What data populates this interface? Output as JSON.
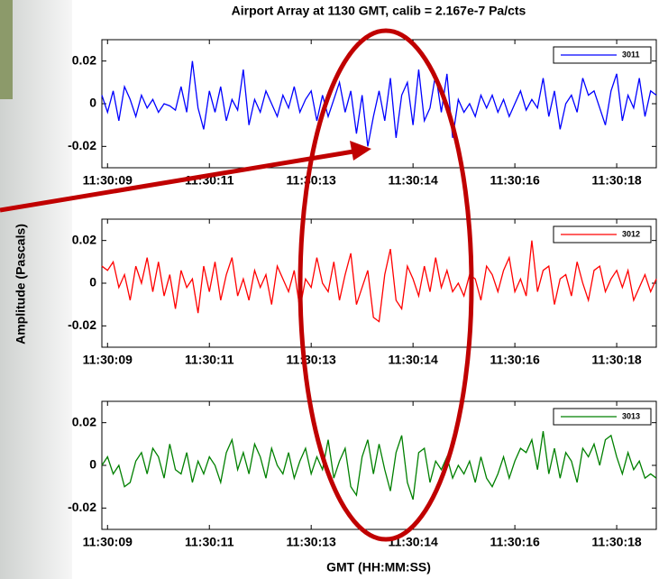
{
  "figure": {
    "title": "Airport Array at 1130 GMT, calib = 2.167e-7 Pa/cts",
    "ylabel": "Amplitude (Pascals)",
    "xlabel": "GMT (HH:MM:SS)"
  },
  "chart_data": [
    {
      "type": "line",
      "legend": "upper right",
      "grid": false,
      "xlim": [
        8.9,
        18.7
      ],
      "ylim": [
        -0.03,
        0.03
      ],
      "yticks": [
        -0.02,
        0,
        0.02
      ],
      "xticks": [
        {
          "value": 9.0,
          "label": "11:30:09"
        },
        {
          "value": 10.8,
          "label": "11:30:11"
        },
        {
          "value": 12.6,
          "label": "11:30:13"
        },
        {
          "value": 14.4,
          "label": "11:30:14"
        },
        {
          "value": 16.2,
          "label": "11:30:16"
        },
        {
          "value": 18.0,
          "label": "11:30:18"
        }
      ],
      "x": [
        8.9,
        9.0,
        9.1,
        9.2,
        9.3,
        9.4,
        9.5,
        9.6,
        9.7,
        9.8,
        9.9,
        10.0,
        10.1,
        10.2,
        10.3,
        10.4,
        10.5,
        10.6,
        10.7,
        10.8,
        10.9,
        11.0,
        11.1,
        11.2,
        11.3,
        11.4,
        11.5,
        11.6,
        11.7,
        11.8,
        11.9,
        12.0,
        12.1,
        12.2,
        12.3,
        12.4,
        12.5,
        12.6,
        12.7,
        12.8,
        12.9,
        13.0,
        13.1,
        13.2,
        13.3,
        13.4,
        13.5,
        13.6,
        13.7,
        13.8,
        13.9,
        14.0,
        14.1,
        14.2,
        14.3,
        14.4,
        14.5,
        14.6,
        14.7,
        14.8,
        14.9,
        15.0,
        15.1,
        15.2,
        15.3,
        15.4,
        15.5,
        15.6,
        15.7,
        15.8,
        15.9,
        16.0,
        16.1,
        16.2,
        16.3,
        16.4,
        16.5,
        16.6,
        16.7,
        16.8,
        16.9,
        17.0,
        17.1,
        17.2,
        17.3,
        17.4,
        17.5,
        17.6,
        17.7,
        17.8,
        17.9,
        18.0,
        18.1,
        18.2,
        18.3,
        18.4,
        18.5,
        18.6,
        18.7
      ],
      "series": [
        {
          "name": "3011",
          "color": "#0000ff",
          "values": [
            0.004,
            -0.004,
            0.006,
            -0.008,
            0.008,
            0.002,
            -0.006,
            0.004,
            -0.002,
            0.002,
            -0.004,
            0.0,
            -0.001,
            -0.003,
            0.008,
            -0.004,
            0.02,
            -0.002,
            -0.012,
            0.006,
            -0.004,
            0.008,
            -0.008,
            0.002,
            -0.003,
            0.016,
            -0.01,
            0.002,
            -0.004,
            0.006,
            0.0,
            -0.006,
            0.004,
            -0.002,
            0.008,
            -0.004,
            0.002,
            0.006,
            -0.008,
            0.004,
            -0.006,
            0.002,
            0.01,
            -0.004,
            0.006,
            -0.014,
            0.004,
            -0.02,
            -0.006,
            0.006,
            -0.008,
            0.012,
            -0.016,
            0.004,
            0.01,
            -0.01,
            0.016,
            -0.008,
            -0.002,
            0.014,
            -0.004,
            0.014,
            -0.016,
            0.002,
            -0.004,
            0.0,
            -0.006,
            0.004,
            -0.002,
            0.004,
            -0.004,
            0.002,
            -0.006,
            0.0,
            0.006,
            -0.003,
            0.002,
            -0.002,
            0.012,
            -0.006,
            0.006,
            -0.012,
            0.0,
            0.004,
            -0.004,
            0.012,
            0.004,
            0.006,
            -0.002,
            -0.01,
            0.006,
            0.014,
            -0.008,
            0.004,
            -0.002,
            0.012,
            -0.006,
            0.006,
            0.004
          ]
        }
      ]
    },
    {
      "type": "line",
      "legend": "upper right",
      "grid": false,
      "xlim": [
        8.9,
        18.7
      ],
      "ylim": [
        -0.03,
        0.03
      ],
      "yticks": [
        -0.02,
        0,
        0.02
      ],
      "xticks": [
        {
          "value": 9.0,
          "label": "11:30:09"
        },
        {
          "value": 10.8,
          "label": "11:30:11"
        },
        {
          "value": 12.6,
          "label": "11:30:13"
        },
        {
          "value": 14.4,
          "label": "11:30:14"
        },
        {
          "value": 16.2,
          "label": "11:30:16"
        },
        {
          "value": 18.0,
          "label": "11:30:18"
        }
      ],
      "x": [
        8.9,
        9.0,
        9.1,
        9.2,
        9.3,
        9.4,
        9.5,
        9.6,
        9.7,
        9.8,
        9.9,
        10.0,
        10.1,
        10.2,
        10.3,
        10.4,
        10.5,
        10.6,
        10.7,
        10.8,
        10.9,
        11.0,
        11.1,
        11.2,
        11.3,
        11.4,
        11.5,
        11.6,
        11.7,
        11.8,
        11.9,
        12.0,
        12.1,
        12.2,
        12.3,
        12.4,
        12.5,
        12.6,
        12.7,
        12.8,
        12.9,
        13.0,
        13.1,
        13.2,
        13.3,
        13.4,
        13.5,
        13.6,
        13.7,
        13.8,
        13.9,
        14.0,
        14.1,
        14.2,
        14.3,
        14.4,
        14.5,
        14.6,
        14.7,
        14.8,
        14.9,
        15.0,
        15.1,
        15.2,
        15.3,
        15.4,
        15.5,
        15.6,
        15.7,
        15.8,
        15.9,
        16.0,
        16.1,
        16.2,
        16.3,
        16.4,
        16.5,
        16.6,
        16.7,
        16.8,
        16.9,
        17.0,
        17.1,
        17.2,
        17.3,
        17.4,
        17.5,
        17.6,
        17.7,
        17.8,
        17.9,
        18.0,
        18.1,
        18.2,
        18.3,
        18.4,
        18.5,
        18.6,
        18.7
      ],
      "series": [
        {
          "name": "3012",
          "color": "#ff0000",
          "values": [
            0.008,
            0.006,
            0.01,
            -0.002,
            0.004,
            -0.008,
            0.008,
            0.0,
            0.012,
            -0.004,
            0.01,
            -0.006,
            0.004,
            -0.012,
            0.006,
            -0.002,
            0.002,
            -0.014,
            0.008,
            -0.004,
            0.01,
            -0.008,
            0.004,
            0.012,
            -0.006,
            0.002,
            -0.008,
            0.006,
            -0.002,
            0.004,
            -0.01,
            0.008,
            0.002,
            -0.004,
            0.006,
            -0.012,
            0.002,
            -0.002,
            0.012,
            0.0,
            -0.004,
            0.01,
            -0.008,
            0.004,
            0.014,
            -0.01,
            -0.002,
            0.006,
            -0.016,
            -0.018,
            0.004,
            0.016,
            -0.008,
            -0.012,
            0.008,
            0.002,
            -0.006,
            0.008,
            -0.004,
            0.012,
            -0.002,
            0.006,
            -0.004,
            0.0,
            -0.006,
            0.004,
            0.002,
            -0.008,
            0.008,
            0.004,
            -0.004,
            0.006,
            0.012,
            -0.004,
            0.002,
            -0.006,
            0.02,
            -0.004,
            0.006,
            0.008,
            -0.01,
            0.002,
            0.004,
            -0.006,
            0.01,
            0.0,
            -0.008,
            0.006,
            0.008,
            -0.004,
            0.002,
            0.006,
            -0.002,
            0.006,
            -0.008,
            -0.002,
            0.004,
            -0.004,
            0.002
          ]
        }
      ]
    },
    {
      "type": "line",
      "legend": "upper right",
      "grid": false,
      "xlim": [
        8.9,
        18.7
      ],
      "ylim": [
        -0.03,
        0.03
      ],
      "yticks": [
        -0.02,
        0,
        0.02
      ],
      "xticks": [
        {
          "value": 9.0,
          "label": "11:30:09"
        },
        {
          "value": 10.8,
          "label": "11:30:11"
        },
        {
          "value": 12.6,
          "label": "11:30:13"
        },
        {
          "value": 14.4,
          "label": "11:30:14"
        },
        {
          "value": 16.2,
          "label": "11:30:16"
        },
        {
          "value": 18.0,
          "label": "11:30:18"
        }
      ],
      "x": [
        8.9,
        9.0,
        9.1,
        9.2,
        9.3,
        9.4,
        9.5,
        9.6,
        9.7,
        9.8,
        9.9,
        10.0,
        10.1,
        10.2,
        10.3,
        10.4,
        10.5,
        10.6,
        10.7,
        10.8,
        10.9,
        11.0,
        11.1,
        11.2,
        11.3,
        11.4,
        11.5,
        11.6,
        11.7,
        11.8,
        11.9,
        12.0,
        12.1,
        12.2,
        12.3,
        12.4,
        12.5,
        12.6,
        12.7,
        12.8,
        12.9,
        13.0,
        13.1,
        13.2,
        13.3,
        13.4,
        13.5,
        13.6,
        13.7,
        13.8,
        13.9,
        14.0,
        14.1,
        14.2,
        14.3,
        14.4,
        14.5,
        14.6,
        14.7,
        14.8,
        14.9,
        15.0,
        15.1,
        15.2,
        15.3,
        15.4,
        15.5,
        15.6,
        15.7,
        15.8,
        15.9,
        16.0,
        16.1,
        16.2,
        16.3,
        16.4,
        16.5,
        16.6,
        16.7,
        16.8,
        16.9,
        17.0,
        17.1,
        17.2,
        17.3,
        17.4,
        17.5,
        17.6,
        17.7,
        17.8,
        17.9,
        18.0,
        18.1,
        18.2,
        18.3,
        18.4,
        18.5,
        18.6,
        18.7
      ],
      "series": [
        {
          "name": "3013",
          "color": "#008000",
          "values": [
            0.0,
            0.004,
            -0.004,
            0.0,
            -0.01,
            -0.008,
            0.002,
            0.006,
            -0.004,
            0.008,
            0.004,
            -0.006,
            0.01,
            -0.002,
            -0.004,
            0.006,
            -0.008,
            0.002,
            -0.004,
            0.004,
            0.0,
            -0.008,
            0.006,
            0.012,
            -0.002,
            0.006,
            -0.004,
            0.01,
            0.004,
            -0.006,
            0.008,
            0.0,
            -0.004,
            0.006,
            -0.006,
            0.002,
            0.008,
            -0.004,
            0.004,
            -0.002,
            0.012,
            -0.006,
            0.002,
            0.008,
            -0.01,
            -0.014,
            0.004,
            0.012,
            -0.004,
            0.01,
            -0.002,
            -0.012,
            0.006,
            0.014,
            -0.008,
            -0.016,
            0.006,
            0.008,
            -0.008,
            0.002,
            -0.002,
            0.004,
            -0.006,
            0.0,
            -0.004,
            0.002,
            -0.008,
            0.004,
            -0.006,
            -0.01,
            -0.004,
            0.004,
            -0.006,
            0.002,
            0.008,
            0.006,
            0.012,
            -0.002,
            0.016,
            -0.004,
            0.008,
            -0.006,
            0.006,
            0.002,
            -0.008,
            0.008,
            0.004,
            0.01,
            0.0,
            0.012,
            0.014,
            0.004,
            -0.004,
            0.006,
            -0.002,
            0.002,
            -0.006,
            -0.004,
            -0.006
          ]
        }
      ]
    }
  ]
}
